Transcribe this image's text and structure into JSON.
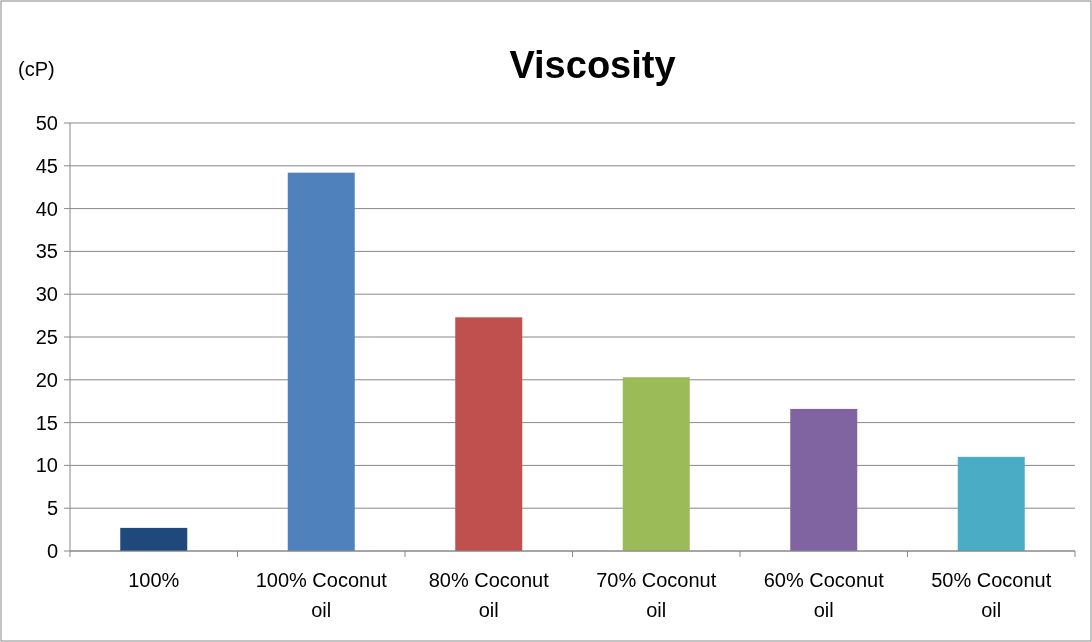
{
  "chart_data": {
    "type": "bar",
    "title": "Viscosity",
    "ylabel": "(cP)",
    "categories": [
      "100%",
      "100% Coconut oil",
      "80% Coconut oil",
      "70% Coconut oil",
      "60% Coconut oil",
      "50% Coconut oil"
    ],
    "values": [
      2.7,
      44.2,
      27.3,
      20.3,
      16.6,
      11.0
    ],
    "colors": [
      "#1f497d",
      "#4f81bd",
      "#c0504d",
      "#9bbb59",
      "#8064a2",
      "#4bacc6"
    ],
    "ylim": [
      0,
      50
    ],
    "yticks": [
      0,
      5,
      10,
      15,
      20,
      25,
      30,
      35,
      40,
      45,
      50
    ],
    "grid": "y"
  }
}
